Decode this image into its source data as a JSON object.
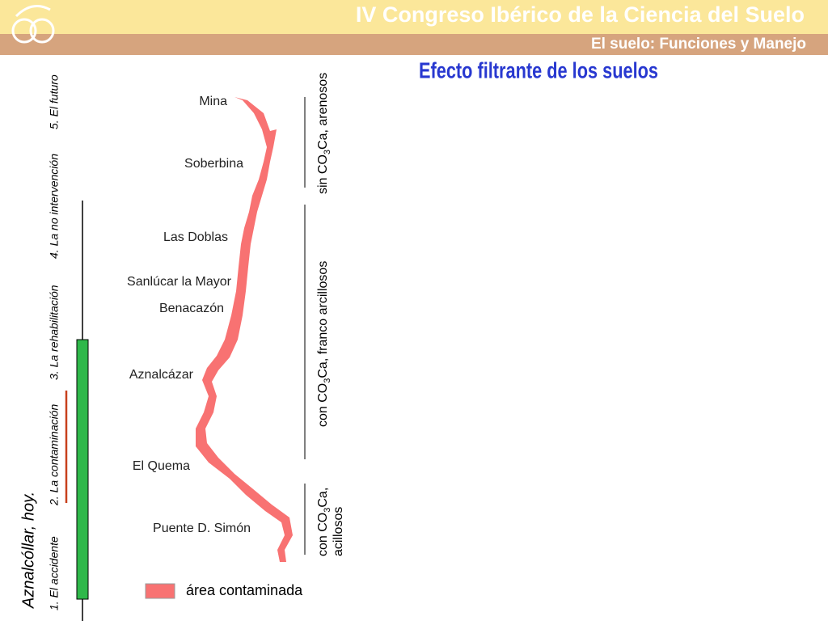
{
  "header": {
    "title": "IV Congreso Ibérico de la Ciencia del Suelo",
    "subtitle": "El suelo: Funciones y Manejo"
  },
  "slide": {
    "title": "Efecto filtrante de los suelos",
    "heading": "Aznalcóllar, hoy.",
    "menu": [
      "1. El accidente",
      "2. La contaminación",
      "3. La rehabilitación",
      "4. La no intervención",
      "5. El futuro"
    ],
    "places": [
      "Mina",
      "Soberbina",
      "Las Doblas",
      "Sanlúcar la Mayor",
      "Benacazón",
      "Aznalcázar",
      "El Quema",
      "Puente D. Simón"
    ],
    "zones": [
      {
        "parts": [
          "sin CO",
          "3",
          "Ca, arenosos"
        ]
      },
      {
        "parts": [
          "con CO",
          "3",
          "Ca, franco arcillosos"
        ]
      },
      {
        "parts": [
          "con CO",
          "3",
          "Ca,"
        ],
        "line2": "acillosos"
      }
    ],
    "legend": "área contaminada"
  }
}
